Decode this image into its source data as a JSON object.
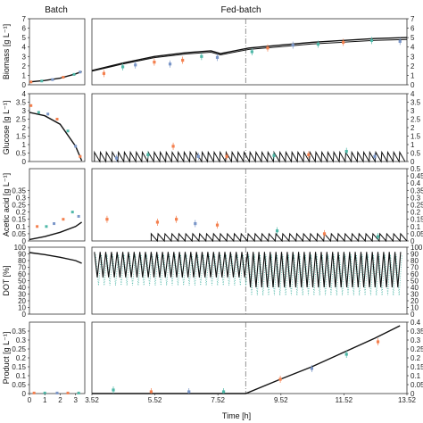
{
  "panel_titles": {
    "batch": "Batch",
    "fed": "Fed-batch"
  },
  "xlabel": "Time [h]",
  "colors": {
    "orange": "#f4804f",
    "teal": "#4fb8a8",
    "blue": "#7a96c8",
    "model": "#111111"
  },
  "batch_xticks": [
    "0",
    "1",
    "2",
    "3"
  ],
  "fed_xticks": [
    "3.52",
    "5.52",
    "7.52",
    "9.52",
    "11.52",
    "13.52"
  ],
  "feed_switch_time": 8.4,
  "chart_data": [
    {
      "type": "line",
      "ylabel": "Biomass [g L⁻¹]",
      "ylim": [
        0,
        7
      ],
      "left_ticks": [
        "0",
        "1",
        "2",
        "3",
        "4",
        "5",
        "6",
        "7"
      ],
      "right_ticks": [
        "0",
        "1",
        "2",
        "3",
        "4",
        "5",
        "6",
        "7"
      ],
      "batch_model": [
        [
          0,
          0.3
        ],
        [
          1,
          0.45
        ],
        [
          2,
          0.7
        ],
        [
          3,
          1.15
        ],
        [
          3.4,
          1.4
        ]
      ],
      "batch_points": [
        [
          0.1,
          0.3
        ],
        [
          0.8,
          0.4
        ],
        [
          1.5,
          0.55
        ],
        [
          2.2,
          0.8
        ],
        [
          2.9,
          1.1
        ],
        [
          3.3,
          1.35
        ]
      ],
      "fed_model": [
        [
          3.52,
          1.5
        ],
        [
          4.5,
          2.3
        ],
        [
          5.5,
          3.0
        ],
        [
          6.5,
          3.4
        ],
        [
          7.3,
          3.6
        ],
        [
          7.6,
          3.3
        ],
        [
          8.5,
          3.9
        ],
        [
          9.5,
          4.2
        ],
        [
          10.5,
          4.5
        ],
        [
          11.5,
          4.7
        ],
        [
          12.5,
          4.9
        ],
        [
          13.52,
          5.0
        ]
      ],
      "fed_points": [
        {
          "x": 3.9,
          "y": 1.2,
          "c": "orange"
        },
        {
          "x": 4.5,
          "y": 1.9,
          "c": "teal"
        },
        {
          "x": 4.9,
          "y": 2.1,
          "c": "blue"
        },
        {
          "x": 5.5,
          "y": 2.4,
          "c": "orange"
        },
        {
          "x": 6.0,
          "y": 2.2,
          "c": "blue"
        },
        {
          "x": 6.4,
          "y": 2.6,
          "c": "orange"
        },
        {
          "x": 7.0,
          "y": 3.0,
          "c": "teal"
        },
        {
          "x": 7.5,
          "y": 2.9,
          "c": "blue"
        },
        {
          "x": 8.6,
          "y": 3.5,
          "c": "teal"
        },
        {
          "x": 9.1,
          "y": 3.9,
          "c": "orange"
        },
        {
          "x": 9.9,
          "y": 4.2,
          "c": "blue"
        },
        {
          "x": 10.7,
          "y": 4.3,
          "c": "teal"
        },
        {
          "x": 11.5,
          "y": 4.5,
          "c": "orange"
        },
        {
          "x": 12.4,
          "y": 4.7,
          "c": "teal"
        },
        {
          "x": 13.3,
          "y": 4.6,
          "c": "blue"
        }
      ]
    },
    {
      "type": "line",
      "ylabel": "Glucose [g L⁻¹]",
      "ylim": [
        0,
        4
      ],
      "left_ticks": [
        "0",
        "0.5",
        "1",
        "1.5",
        "2",
        "2.5",
        "3",
        "3.5",
        "4"
      ],
      "right_ticks": [
        "0",
        "0.5",
        "1",
        "1.5",
        "2",
        "2.5",
        "3",
        "3.5",
        "4"
      ],
      "batch_model": [
        [
          0,
          2.9
        ],
        [
          1,
          2.7
        ],
        [
          2,
          2.2
        ],
        [
          3,
          0.9
        ],
        [
          3.4,
          0.05
        ]
      ],
      "batch_points": [
        [
          0.1,
          3.3
        ],
        [
          0.6,
          2.9
        ],
        [
          1.2,
          2.8
        ],
        [
          1.8,
          2.5
        ],
        [
          2.5,
          1.8
        ],
        [
          3.0,
          0.9
        ],
        [
          3.3,
          0.3
        ]
      ],
      "fed_model_sawtooth": {
        "start": 3.6,
        "end": 13.4,
        "period": 0.19,
        "peak": 0.55
      },
      "fed_points": [
        {
          "x": 4.3,
          "y": 0.2,
          "c": "blue"
        },
        {
          "x": 5.3,
          "y": 0.4,
          "c": "teal"
        },
        {
          "x": 6.1,
          "y": 0.9,
          "c": "orange"
        },
        {
          "x": 6.9,
          "y": 0.3,
          "c": "blue"
        },
        {
          "x": 7.8,
          "y": 0.3,
          "c": "orange"
        },
        {
          "x": 9.3,
          "y": 0.35,
          "c": "teal"
        },
        {
          "x": 10.4,
          "y": 0.4,
          "c": "orange"
        },
        {
          "x": 11.6,
          "y": 0.6,
          "c": "teal"
        },
        {
          "x": 12.5,
          "y": 0.3,
          "c": "blue"
        }
      ]
    },
    {
      "type": "line",
      "ylabel": "Acetic acid [g L⁻¹]",
      "ylim": [
        0,
        0.5
      ],
      "left_ticks": [
        "0",
        "0.05",
        "0.1",
        "0.15",
        "0.2",
        "0.25",
        "0.3",
        "0.35"
      ],
      "right_ticks": [
        "0",
        "0.05",
        "0.1",
        "0.15",
        "0.2",
        "0.25",
        "0.3",
        "0.35",
        "0.4",
        "0.45",
        "0.5"
      ],
      "batch_model": [
        [
          0,
          0.01
        ],
        [
          1,
          0.03
        ],
        [
          2,
          0.06
        ],
        [
          3,
          0.1
        ],
        [
          3.4,
          0.13
        ]
      ],
      "batch_points": [
        [
          0.5,
          0.1
        ],
        [
          1.1,
          0.1
        ],
        [
          1.6,
          0.12
        ],
        [
          2.2,
          0.15
        ],
        [
          2.8,
          0.2
        ],
        [
          3.2,
          0.17
        ]
      ],
      "fed_model_sawtooth": {
        "start": 5.4,
        "end": 13.4,
        "period": 0.22,
        "peak": 0.05
      },
      "fed_points": [
        {
          "x": 4.0,
          "y": 0.15,
          "c": "orange"
        },
        {
          "x": 5.6,
          "y": 0.13,
          "c": "orange"
        },
        {
          "x": 6.2,
          "y": 0.15,
          "c": "orange"
        },
        {
          "x": 6.8,
          "y": 0.12,
          "c": "blue"
        },
        {
          "x": 7.5,
          "y": 0.11,
          "c": "orange"
        },
        {
          "x": 9.4,
          "y": 0.07,
          "c": "teal"
        },
        {
          "x": 10.9,
          "y": 0.05,
          "c": "orange"
        },
        {
          "x": 12.6,
          "y": 0.03,
          "c": "teal"
        }
      ]
    },
    {
      "type": "line",
      "ylabel": "DOT [%]",
      "ylim": [
        0,
        100
      ],
      "left_ticks": [
        "0",
        "10",
        "20",
        "30",
        "40",
        "50",
        "60",
        "70",
        "80",
        "90",
        "100"
      ],
      "right_ticks": [
        "0",
        "10",
        "20",
        "30",
        "40",
        "50",
        "60",
        "70",
        "80",
        "90",
        "100"
      ],
      "batch_model": [
        [
          0,
          92
        ],
        [
          1,
          89
        ],
        [
          2,
          85
        ],
        [
          3,
          80
        ],
        [
          3.4,
          76
        ]
      ],
      "fed_oscillation": {
        "start": 3.6,
        "end": 13.4,
        "period": 0.18,
        "hi": 93,
        "lo_before": 55,
        "lo_after": 40
      }
    },
    {
      "type": "line",
      "ylabel": "Product [g L⁻¹]",
      "ylim": [
        0,
        0.4
      ],
      "left_ticks": [
        "0",
        "0.05",
        "0.1",
        "0.15",
        "0.2",
        "0.25",
        "0.3",
        "0.35"
      ],
      "right_ticks": [
        "0",
        "0.05",
        "0.1",
        "0.15",
        "0.2",
        "0.25",
        "0.3",
        "0.35",
        "0.4"
      ],
      "batch_points": [
        [
          0.3,
          0.003
        ],
        [
          1.0,
          0.003
        ],
        [
          1.8,
          0.003
        ],
        [
          2.5,
          0.003
        ],
        [
          3.2,
          0.003
        ]
      ],
      "fed_model": [
        [
          3.52,
          0
        ],
        [
          8.4,
          0
        ],
        [
          9.5,
          0.08
        ],
        [
          10.5,
          0.15
        ],
        [
          11.5,
          0.23
        ],
        [
          12.5,
          0.31
        ],
        [
          13.3,
          0.38
        ]
      ],
      "fed_points": [
        {
          "x": 4.2,
          "y": 0.02,
          "c": "teal"
        },
        {
          "x": 5.4,
          "y": 0.01,
          "c": "orange"
        },
        {
          "x": 6.6,
          "y": 0.01,
          "c": "blue"
        },
        {
          "x": 7.7,
          "y": 0.01,
          "c": "teal"
        },
        {
          "x": 9.5,
          "y": 0.08,
          "c": "orange"
        },
        {
          "x": 10.5,
          "y": 0.14,
          "c": "blue"
        },
        {
          "x": 11.6,
          "y": 0.22,
          "c": "teal"
        },
        {
          "x": 12.6,
          "y": 0.29,
          "c": "orange"
        }
      ]
    }
  ]
}
